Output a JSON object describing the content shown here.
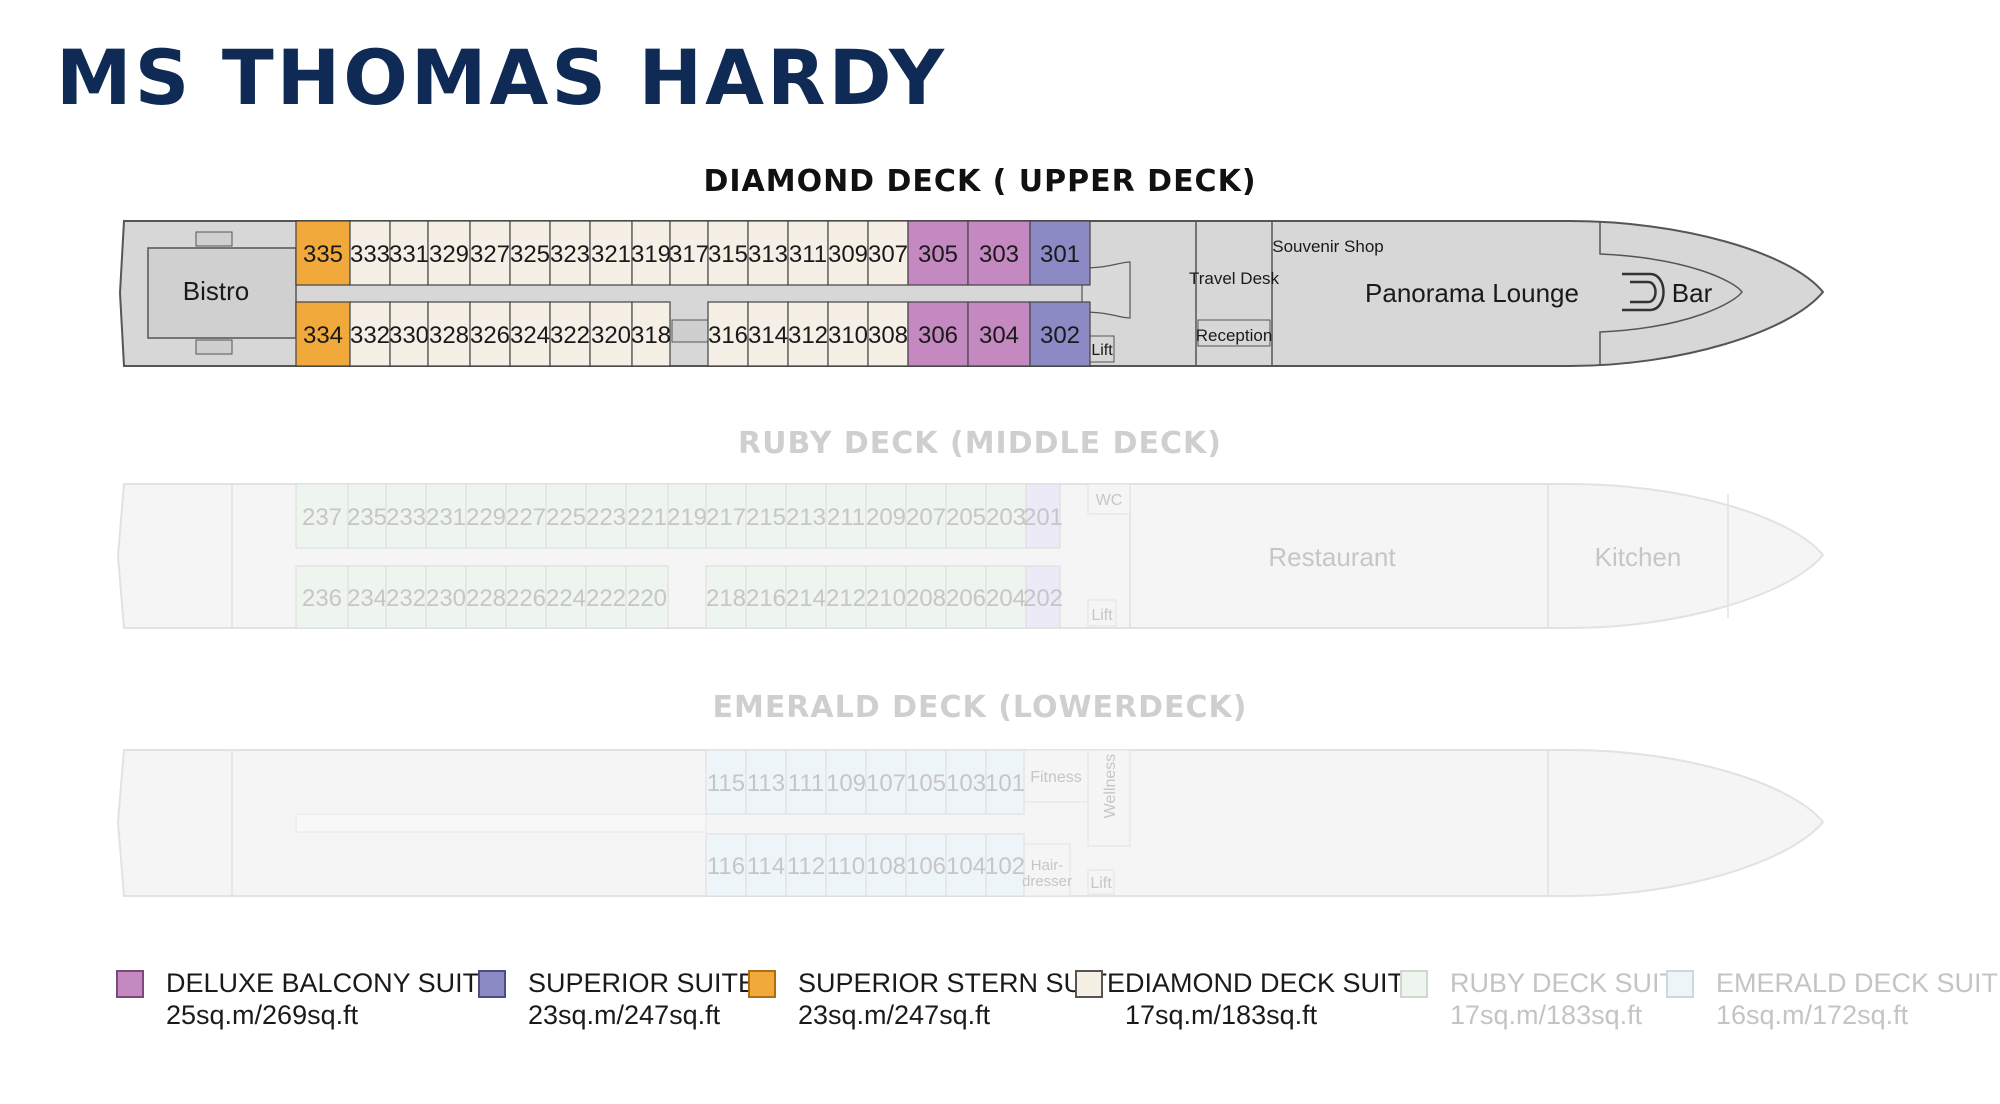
{
  "title": "MS THOMAS HARDY",
  "colors": {
    "title": "#0f2a55",
    "deluxe_balcony": "#c489c0",
    "superior": "#8b8ac4",
    "superior_stern": "#f2a93b",
    "diamond": "#f6efe6",
    "ruby": "#eef4ee",
    "emerald": "#eef5f9",
    "hull_active": "#d7d7d7",
    "hull_faded": "#f3f3f3"
  },
  "decks": {
    "diamond": {
      "title": "DIAMOND DECK ( UPPER DECK)",
      "cabins_top": [
        "335",
        "333",
        "331",
        "329",
        "327",
        "325",
        "323",
        "321",
        "319",
        "317",
        "315",
        "313",
        "311",
        "309",
        "307",
        "305",
        "303",
        "301"
      ],
      "cabins_bottom_aft": [
        "334",
        "332",
        "330",
        "328",
        "326",
        "324",
        "322",
        "320",
        "318"
      ],
      "cabins_bottom_fwd": [
        "316",
        "314",
        "312",
        "310",
        "308",
        "306",
        "304",
        "302"
      ],
      "rooms": {
        "bistro": "Bistro",
        "souvenir": "Souvenir Shop",
        "travel": "Travel Desk",
        "reception": "Reception",
        "lift": "Lift",
        "lounge": "Panorama Lounge",
        "bar": "Bar"
      }
    },
    "ruby": {
      "title": "RUBY DECK (MIDDLE DECK)",
      "cabins_top": [
        "237",
        "235",
        "233",
        "231",
        "229",
        "227",
        "225",
        "223",
        "221",
        "219",
        "217",
        "215",
        "213",
        "211",
        "209",
        "207",
        "205",
        "203",
        "201"
      ],
      "cabins_bottom_aft": [
        "236",
        "234",
        "232",
        "230",
        "228",
        "226",
        "224",
        "222",
        "220"
      ],
      "cabins_bottom_fwd": [
        "218",
        "216",
        "214",
        "212",
        "210",
        "208",
        "206",
        "204",
        "202"
      ],
      "rooms": {
        "wc": "WC",
        "lift": "Lift",
        "restaurant": "Restaurant",
        "kitchen": "Kitchen"
      }
    },
    "emerald": {
      "title": "EMERALD DECK (LOWERDECK)",
      "cabins_top": [
        "115",
        "113",
        "111",
        "109",
        "107",
        "105",
        "103",
        "101"
      ],
      "cabins_bottom": [
        "116",
        "114",
        "112",
        "110",
        "108",
        "106",
        "104",
        "102"
      ],
      "rooms": {
        "fitness": "Fitness",
        "wellness": "Wellness",
        "hair1": "Hair-",
        "hair2": "dresser",
        "lift": "Lift"
      }
    }
  },
  "legend": [
    {
      "name": "DELUXE BALCONY SUITE",
      "size": "25sq.m/269sq.ft",
      "color": "#c489c0",
      "border": "#7d4a7a",
      "text": "#1a1a1a"
    },
    {
      "name": "SUPERIOR SUITE",
      "size": "23sq.m/247sq.ft",
      "color": "#8b8ac4",
      "border": "#4d4c86",
      "text": "#1a1a1a"
    },
    {
      "name": "SUPERIOR STERN SUITE",
      "size": "23sq.m/247sq.ft",
      "color": "#f2a93b",
      "border": "#b06e10",
      "text": "#1a1a1a"
    },
    {
      "name": "DIAMOND DECK SUITE",
      "size": "17sq.m/183sq.ft",
      "color": "#f6efe6",
      "border": "#555555",
      "text": "#1a1a1a"
    },
    {
      "name": "RUBY DECK SUITE",
      "size": "17sq.m/183sq.ft",
      "color": "#eef4ee",
      "border": "#cfd8cf",
      "text": "#c4c4c4"
    },
    {
      "name": "EMERALD DECK SUITE",
      "size": "16sq.m/172sq.ft",
      "color": "#eef5f9",
      "border": "#cbd8df",
      "text": "#c4c4c4"
    }
  ]
}
